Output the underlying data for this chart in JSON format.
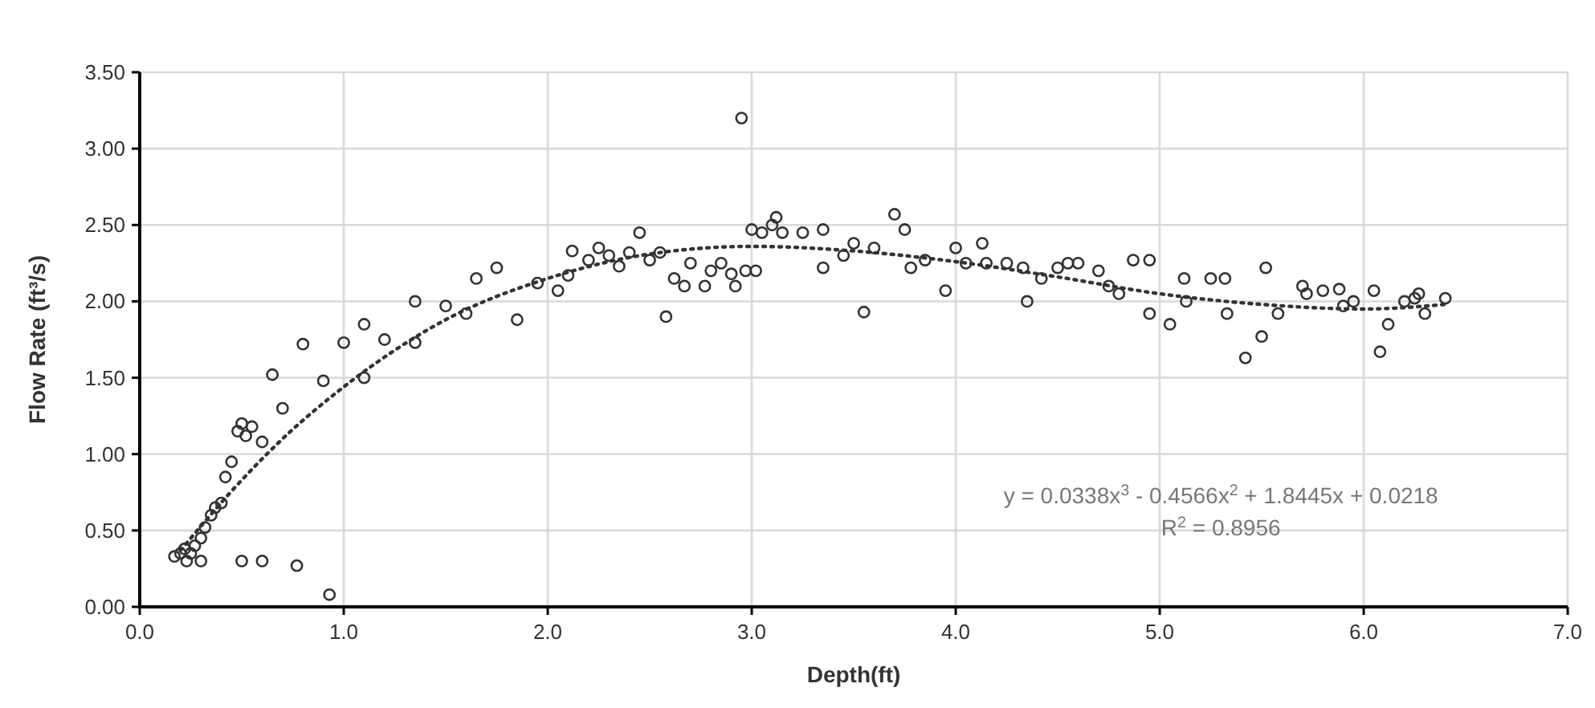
{
  "chart_data": {
    "type": "scatter",
    "xlabel": "Depth(ft)",
    "ylabel": "Flow Rate (ft³/s)",
    "xlim": [
      0,
      7
    ],
    "xticks": [
      {
        "value": 0,
        "label": "0.0"
      },
      {
        "value": 1,
        "label": "1.0"
      },
      {
        "value": 2,
        "label": "2.0"
      },
      {
        "value": 3,
        "label": "3.0"
      },
      {
        "value": 4,
        "label": "4.0"
      },
      {
        "value": 5,
        "label": "5.0"
      },
      {
        "value": 6,
        "label": "6.0"
      },
      {
        "value": 7,
        "label": "7.0"
      }
    ],
    "ylim": [
      0,
      3.5
    ],
    "yticks": [
      {
        "value": 0,
        "label": "0.00"
      },
      {
        "value": 0.5,
        "label": "0.50"
      },
      {
        "value": 1,
        "label": "1.00"
      },
      {
        "value": 1.5,
        "label": "1.50"
      },
      {
        "value": 2,
        "label": "2.00"
      },
      {
        "value": 2.5,
        "label": "2.50"
      },
      {
        "value": 3,
        "label": "3.00"
      },
      {
        "value": 3.5,
        "label": "3.50"
      }
    ],
    "grid": true,
    "series": [
      {
        "color": "#333333",
        "marker": "circle",
        "x": [
          0.17,
          0.2,
          0.22,
          0.23,
          0.25,
          0.27,
          0.3,
          0.3,
          0.32,
          0.35,
          0.37,
          0.4,
          0.42,
          0.45,
          0.48,
          0.5,
          0.52,
          0.55,
          0.6,
          0.65,
          0.7,
          0.8,
          0.9,
          0.5,
          0.6,
          0.77,
          0.93,
          1.0,
          1.1,
          1.1,
          1.2,
          1.35,
          1.35,
          1.5,
          1.6,
          1.65,
          1.75,
          1.85,
          1.95,
          2.05,
          2.1,
          2.12,
          2.2,
          2.25,
          2.3,
          2.35,
          2.4,
          2.45,
          2.5,
          2.55,
          2.58,
          2.62,
          2.67,
          2.7,
          2.77,
          2.8,
          2.85,
          2.9,
          2.92,
          2.95,
          2.97,
          3.0,
          3.02,
          3.05,
          3.1,
          3.12,
          3.15,
          3.25,
          3.35,
          3.35,
          3.45,
          3.5,
          3.55,
          3.6,
          3.7,
          3.75,
          3.78,
          3.85,
          3.95,
          4.0,
          4.05,
          4.13,
          4.15,
          4.25,
          4.35,
          4.33,
          4.42,
          4.5,
          4.55,
          4.6,
          4.7,
          4.75,
          4.8,
          4.87,
          4.95,
          4.95,
          5.05,
          5.12,
          5.13,
          5.25,
          5.32,
          5.33,
          5.42,
          5.5,
          5.52,
          5.58,
          5.7,
          5.72,
          5.8,
          5.88,
          5.9,
          5.95,
          6.05,
          6.08,
          6.12,
          6.2,
          6.25,
          6.27,
          6.3,
          6.4
        ],
        "values": [
          0.33,
          0.35,
          0.38,
          0.3,
          0.35,
          0.4,
          0.45,
          0.3,
          0.52,
          0.6,
          0.65,
          0.68,
          0.85,
          0.95,
          1.15,
          1.2,
          1.12,
          1.18,
          1.08,
          1.52,
          1.3,
          1.72,
          1.48,
          0.3,
          0.3,
          0.27,
          0.08,
          1.73,
          1.85,
          1.5,
          1.75,
          2.0,
          1.73,
          1.97,
          1.92,
          2.15,
          2.22,
          1.88,
          2.12,
          2.07,
          2.17,
          2.33,
          2.27,
          2.35,
          2.3,
          2.23,
          2.32,
          2.45,
          2.27,
          2.32,
          1.9,
          2.15,
          2.1,
          2.25,
          2.1,
          2.2,
          2.25,
          2.18,
          2.1,
          3.2,
          2.2,
          2.47,
          2.2,
          2.45,
          2.5,
          2.55,
          2.45,
          2.45,
          2.47,
          2.22,
          2.3,
          2.38,
          1.93,
          2.35,
          2.57,
          2.47,
          2.22,
          2.27,
          2.07,
          2.35,
          2.25,
          2.38,
          2.25,
          2.25,
          2.0,
          2.22,
          2.15,
          2.22,
          2.25,
          2.25,
          2.2,
          2.1,
          2.05,
          2.27,
          2.27,
          1.92,
          1.85,
          2.15,
          2.0,
          2.15,
          2.15,
          1.92,
          1.63,
          1.77,
          2.22,
          1.92,
          2.1,
          2.05,
          2.07,
          2.08,
          1.97,
          2.0,
          2.07,
          1.67,
          1.85,
          2.0,
          2.02,
          2.05,
          1.92,
          2.02
        ]
      },
      {
        "type": "line",
        "color": "#333333",
        "marker": "none",
        "line_style": "dotted",
        "x": [
          0.2,
          0.5,
          0.7,
          1.0,
          1.25,
          1.5,
          2.0,
          2.5,
          3.0,
          3.5,
          4.0,
          4.5,
          5.0,
          5.5,
          6.0,
          6.4
        ],
        "values": [
          0.37,
          0.83,
          1.1,
          1.44,
          1.68,
          1.88,
          2.15,
          2.31,
          2.36,
          2.33,
          2.26,
          2.16,
          2.05,
          1.98,
          1.95,
          1.98
        ]
      }
    ],
    "annotations": [
      "y = 0.0338x$^{3}$ - 0.4566x$^{2}$ + 1.8445x + 0.0218",
      "R$^{2}$ = 0.8956"
    ]
  }
}
